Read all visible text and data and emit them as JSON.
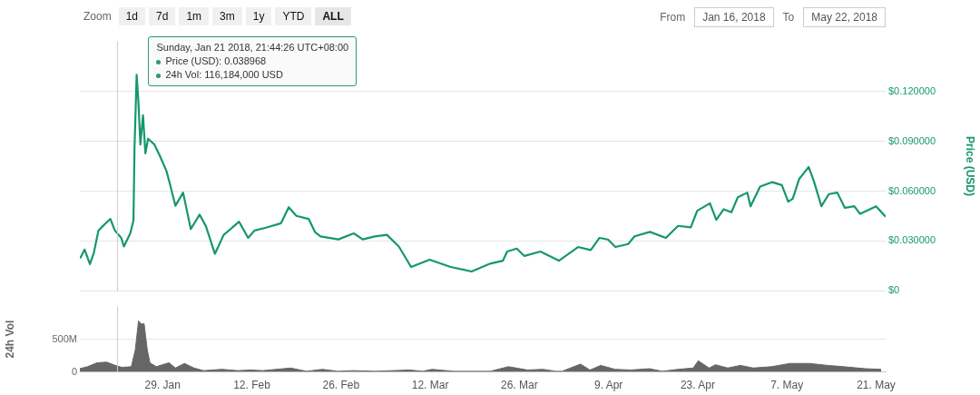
{
  "chart_data": [
    {
      "type": "line",
      "ylabel": "Price (USD)",
      "color": "#16976e",
      "x": [
        "2018-01-16T01:00",
        "2018-01-16T18:00",
        "2018-01-17T14:00",
        "2018-01-18T05:00",
        "2018-01-18T22:00",
        "2018-01-19T14:00",
        "2018-01-20T19:00",
        "2018-01-21T12:00",
        "2018-01-22T12:00",
        "2018-01-22T22:00",
        "2018-01-23T22:00",
        "2018-01-24T10:00",
        "2018-01-24T14:00",
        "2018-01-24T22:00",
        "2018-01-25T05:00",
        "2018-01-25T12:00",
        "2018-01-25T22:00",
        "2018-01-26T07:00",
        "2018-01-26T17:00",
        "2018-01-27T17:00",
        "2018-01-28T14:00",
        "2018-01-29T14:00",
        "2018-01-30T02:00",
        "2018-01-31T00:00",
        "2018-02-01T05:00",
        "2018-02-02T10:00",
        "2018-02-03T19:00",
        "2018-02-04T19:00",
        "2018-02-06T05:00",
        "2018-02-07T14:00",
        "2018-02-10T00:00",
        "2018-02-11T10:00",
        "2018-02-12T10:00",
        "2018-02-14T05:00",
        "2018-02-16T14:00",
        "2018-02-17T19:00",
        "2018-02-19T00:00",
        "2018-02-20T22:00",
        "2018-02-21T22:00",
        "2018-02-22T19:00",
        "2018-02-25T14:00",
        "2018-02-28T00:00",
        "2018-03-01T10:00",
        "2018-03-03T07:00",
        "2018-03-05T05:00",
        "2018-03-07T02:00",
        "2018-03-09T00:00",
        "2018-03-11T22:00",
        "2018-03-15T05:00",
        "2018-03-18T12:00",
        "2018-03-21T10:00",
        "2018-03-23T10:00",
        "2018-03-24T02:00",
        "2018-03-25T14:00",
        "2018-03-26T19:00",
        "2018-03-29T07:00",
        "2018-04-01T05:00",
        "2018-04-04T05:00",
        "2018-04-06T05:00",
        "2018-04-07T14:00",
        "2018-04-08T22:00",
        "2018-04-10T02:00",
        "2018-04-12T02:00",
        "2018-04-13T02:00",
        "2018-04-15T12:00",
        "2018-04-18T00:00",
        "2018-04-19T22:00",
        "2018-04-21T22:00",
        "2018-04-22T22:00",
        "2018-04-24T22:00",
        "2018-04-25T22:00",
        "2018-04-27T02:00",
        "2018-04-28T07:00",
        "2018-04-29T07:00",
        "2018-04-30T19:00",
        "2018-05-01T07:00",
        "2018-05-02T19:00",
        "2018-05-04T17:00",
        "2018-05-06T05:00",
        "2018-05-07T05:00",
        "2018-05-07T22:00",
        "2018-05-08T22:00",
        "2018-05-10T10:00",
        "2018-05-11T05:00",
        "2018-05-12T10:00",
        "2018-05-13T14:00",
        "2018-05-14T22:00",
        "2018-05-16T02:00",
        "2018-05-17T14:00",
        "2018-05-18T12:00",
        "2018-05-21T00:00",
        "2018-05-22T12:00"
      ],
      "values": [
        0.0196,
        0.0249,
        0.0161,
        0.0231,
        0.0363,
        0.0389,
        0.0433,
        0.0363,
        0.0319,
        0.0267,
        0.0346,
        0.0424,
        0.0863,
        0.13,
        0.1126,
        0.088,
        0.1056,
        0.0827,
        0.0915,
        0.088,
        0.081,
        0.0722,
        0.0652,
        0.0512,
        0.0591,
        0.0372,
        0.0459,
        0.0389,
        0.0223,
        0.0337,
        0.0416,
        0.0319,
        0.0363,
        0.038,
        0.0407,
        0.0503,
        0.0451,
        0.0433,
        0.0354,
        0.0328,
        0.031,
        0.0346,
        0.031,
        0.0328,
        0.0337,
        0.0267,
        0.0144,
        0.0188,
        0.0144,
        0.0117,
        0.0164,
        0.0182,
        0.0237,
        0.0255,
        0.021,
        0.0237,
        0.0182,
        0.0264,
        0.0246,
        0.0319,
        0.0309,
        0.0264,
        0.0282,
        0.0328,
        0.0355,
        0.0319,
        0.0391,
        0.0382,
        0.0482,
        0.0527,
        0.0427,
        0.0491,
        0.0473,
        0.0563,
        0.0591,
        0.0509,
        0.0627,
        0.0654,
        0.0636,
        0.0536,
        0.0554,
        0.0672,
        0.0745,
        0.0663,
        0.0509,
        0.0582,
        0.0591,
        0.05,
        0.0509,
        0.0463,
        0.0509,
        0.0446
      ],
      "xlim": [
        "2018-01-16",
        "2018-05-22T12:00"
      ],
      "ylim": [
        0,
        0.15
      ],
      "yticks": [
        {
          "value": 0,
          "label": "$0"
        },
        {
          "value": 0.03,
          "label": "$0.030000"
        },
        {
          "value": 0.06,
          "label": "$0.060000"
        },
        {
          "value": 0.09,
          "label": "$0.090000"
        },
        {
          "value": 0.12,
          "label": "$0.120000"
        }
      ],
      "grid": "y",
      "tick_labels": "y",
      "ref_lines": [
        {
          "axis": "x",
          "value": "2018-01-21T21:44",
          "color": "#cccccc"
        }
      ],
      "annotations": [
        "Zoom",
        "1d",
        "7d",
        "1m",
        "3m",
        "1y",
        "YTD",
        "ALL",
        "From",
        "Jan 16, 2018",
        "To",
        "May 22, 2018",
        "Sunday, Jan 21 2018, 21:44:26 UTC+08:00",
        "Price (USD): 0.038968",
        "24h Vol: 116,184,000 USD"
      ]
    },
    {
      "type": "area",
      "ylabel": "24h Vol",
      "color": "#666666",
      "x": [
        "2018-01-16T00:00",
        "2018-01-17T05:00",
        "2018-01-18T17:00",
        "2018-01-20T05:00",
        "2018-01-21T14:00",
        "2018-01-22T14:00",
        "2018-01-24T02:00",
        "2018-01-24T17:00",
        "2018-01-25T05:00",
        "2018-01-25T17:00",
        "2018-01-26T02:00",
        "2018-01-26T14:00",
        "2018-01-27T00:00",
        "2018-01-28T00:00",
        "2018-01-30T00:00",
        "2018-01-31T00:00",
        "2018-02-01T10:00",
        "2018-02-02T22:00",
        "2018-02-04T10:00",
        "2018-02-07T07:00",
        "2018-02-09T19:00",
        "2018-02-11T19:00",
        "2018-02-13T17:00",
        "2018-02-18T02:00",
        "2018-02-20T14:00",
        "2018-02-23T02:00",
        "2018-02-25T12:00",
        "2018-02-28T00:00",
        "2018-03-03T10:00",
        "2018-03-08T19:00",
        "2018-03-10T19:00",
        "2018-03-12T07:00",
        "2018-03-15T17:00",
        "2018-03-19T02:00",
        "2018-03-21T10:00",
        "2018-03-24T07:00",
        "2018-03-27T07:00",
        "2018-03-29T17:00",
        "2018-03-31T17:00",
        "2018-04-01T17:00",
        "2018-04-04T14:00",
        "2018-04-06T02:00",
        "2018-04-07T19:00",
        "2018-04-10T00:00",
        "2018-04-12T12:00",
        "2018-04-15T10:00",
        "2018-04-17T10:00",
        "2018-04-19T22:00",
        "2018-04-22T07:00",
        "2018-04-23T02:00",
        "2018-04-24T19:00",
        "2018-04-25T19:00",
        "2018-04-27T17:00",
        "2018-04-29T17:00",
        "2018-05-01T17:00",
        "2018-05-04T14:00",
        "2018-05-07T12:00",
        "2018-05-10T12:00",
        "2018-05-13T10:00",
        "2018-05-15T22:00",
        "2018-05-19T07:00",
        "2018-05-21T19:00"
      ],
      "values": [
        50000000,
        80000000,
        140000000,
        150000000,
        100000000,
        70000000,
        80000000,
        340000000,
        780000000,
        730000000,
        740000000,
        340000000,
        140000000,
        80000000,
        140000000,
        60000000,
        130000000,
        60000000,
        20000000,
        40000000,
        20000000,
        30000000,
        20000000,
        60000000,
        10000000,
        40000000,
        10000000,
        20000000,
        10000000,
        30000000,
        10000000,
        40000000,
        10000000,
        10000000,
        10000000,
        80000000,
        30000000,
        40000000,
        10000000,
        10000000,
        120000000,
        30000000,
        100000000,
        40000000,
        30000000,
        50000000,
        10000000,
        40000000,
        60000000,
        170000000,
        60000000,
        110000000,
        60000000,
        100000000,
        60000000,
        80000000,
        130000000,
        130000000,
        100000000,
        80000000,
        50000000,
        40000000
      ],
      "xlim": [
        "2018-01-16",
        "2018-05-22T12:00"
      ],
      "xticks": [
        {
          "value": "2018-01-29",
          "label": "29. Jan"
        },
        {
          "value": "2018-02-12",
          "label": "12. Feb"
        },
        {
          "value": "2018-02-26",
          "label": "26. Feb"
        },
        {
          "value": "2018-03-12",
          "label": "12. Mar"
        },
        {
          "value": "2018-03-26",
          "label": "26. Mar"
        },
        {
          "value": "2018-04-09",
          "label": "9. Apr"
        },
        {
          "value": "2018-04-23",
          "label": "23. Apr"
        },
        {
          "value": "2018-05-07",
          "label": "7. May"
        },
        {
          "value": "2018-05-21",
          "label": "21. May"
        }
      ],
      "ylim": [
        0,
        1000000000
      ],
      "yticks": [
        {
          "value": 0,
          "label": "0"
        },
        {
          "value": 500000000,
          "label": "500M"
        }
      ],
      "grid": "y",
      "ref_lines": [
        {
          "axis": "x",
          "value": "2018-01-21T21:44",
          "color": "#cccccc"
        }
      ]
    }
  ]
}
